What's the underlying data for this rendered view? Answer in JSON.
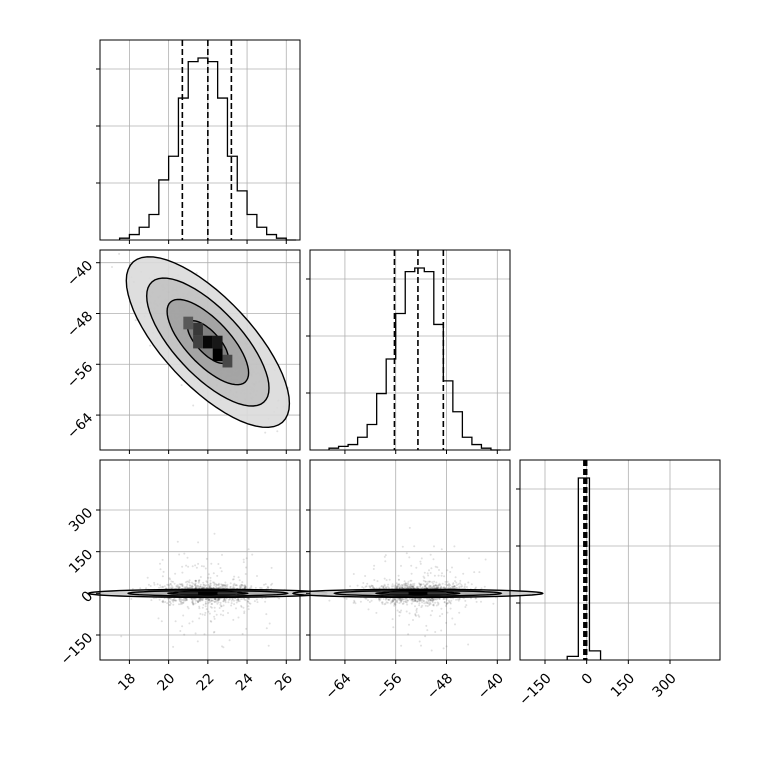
{
  "chart_data": {
    "type": "corner",
    "parameters": [
      {
        "range": [
          16.5,
          26.7
        ],
        "ticks": [
          18,
          20,
          22,
          24,
          26
        ],
        "tick_labels": [
          "18",
          "20",
          "22",
          "24",
          "26"
        ],
        "quantiles": [
          20.7,
          22.0,
          23.2
        ],
        "hist": {
          "edges": [
            17.5,
            18.0,
            18.5,
            19.0,
            19.5,
            20.0,
            20.5,
            21.0,
            21.5,
            22.0,
            22.5,
            23.0,
            23.5,
            24.0,
            24.5,
            25.0,
            25.5,
            26.0,
            26.5
          ],
          "counts": [
            0.01,
            0.03,
            0.07,
            0.14,
            0.33,
            0.46,
            0.78,
            0.98,
            1.0,
            0.98,
            0.78,
            0.46,
            0.27,
            0.14,
            0.07,
            0.03,
            0.01,
            0.0
          ]
        }
      },
      {
        "range": [
          -69.5,
          -38.0
        ],
        "ticks": [
          -64,
          -56,
          -48,
          -40
        ],
        "tick_labels": [
          "−64",
          "−56",
          "−48",
          "−40"
        ],
        "quantiles": [
          -56.2,
          -52.5,
          -48.5
        ],
        "hist": {
          "edges": [
            -66.5,
            -65.0,
            -63.5,
            -62.0,
            -60.5,
            -59.0,
            -57.5,
            -56.0,
            -54.5,
            -53.0,
            -51.5,
            -50.0,
            -48.5,
            -47.0,
            -45.5,
            -44.0,
            -42.5,
            -41.0,
            -39.5
          ],
          "counts": [
            0.01,
            0.02,
            0.03,
            0.07,
            0.14,
            0.31,
            0.5,
            0.75,
            0.98,
            1.0,
            0.98,
            0.69,
            0.38,
            0.21,
            0.07,
            0.03,
            0.01,
            0.0
          ]
        }
      },
      {
        "range": [
          -240,
          480
        ],
        "ticks": [
          -150,
          0,
          150,
          300
        ],
        "tick_labels": [
          "−150",
          "0",
          "150",
          "300"
        ],
        "quantiles": [
          -10,
          -5,
          0
        ],
        "hist": {
          "edges": [
            -70,
            -30,
            10,
            50
          ],
          "counts": [
            0.02,
            1.0,
            0.05
          ]
        }
      }
    ],
    "pairs": [
      {
        "row": 1,
        "col": 0,
        "center": [
          22.0,
          -52.5
        ],
        "spread": [
          1.3,
          4.2
        ],
        "rho": -0.72,
        "contour_sigmas": [
          0.5,
          1.0,
          1.5,
          2.0
        ],
        "dense_cells": [
          {
            "x": 22.0,
            "y": -52.5,
            "shade": 0.05
          },
          {
            "x": 22.5,
            "y": -54.5,
            "shade": 0.0
          },
          {
            "x": 21.5,
            "y": -50.5,
            "shade": 0.35
          },
          {
            "x": 22.5,
            "y": -52.5,
            "shade": 0.15
          },
          {
            "x": 21.5,
            "y": -52.5,
            "shade": 0.4
          },
          {
            "x": 23.0,
            "y": -55.5,
            "shade": 0.45
          },
          {
            "x": 21.0,
            "y": -49.5,
            "shade": 0.55
          }
        ]
      },
      {
        "row": 2,
        "col": 0,
        "center": [
          22.0,
          0
        ],
        "spread": [
          1.3,
          35
        ],
        "rho": 0,
        "contour_sigmas": [
          0.5,
          1.0,
          1.5
        ],
        "dense_cells": [
          {
            "x": 22.0,
            "y": 0,
            "shade": 0.0
          },
          {
            "x": 21.0,
            "y": 0,
            "shade": 0.3
          },
          {
            "x": 23.0,
            "y": 0,
            "shade": 0.35
          }
        ]
      },
      {
        "row": 2,
        "col": 1,
        "center": [
          -52.5,
          0
        ],
        "spread": [
          4.2,
          35
        ],
        "rho": 0,
        "contour_sigmas": [
          0.5,
          1.0,
          1.5
        ],
        "dense_cells": [
          {
            "x": -52.5,
            "y": 0,
            "shade": 0.0
          },
          {
            "x": -55.5,
            "y": 0,
            "shade": 0.3
          },
          {
            "x": -49.5,
            "y": 0,
            "shade": 0.35
          }
        ]
      }
    ],
    "grid": true,
    "legend": "none"
  }
}
